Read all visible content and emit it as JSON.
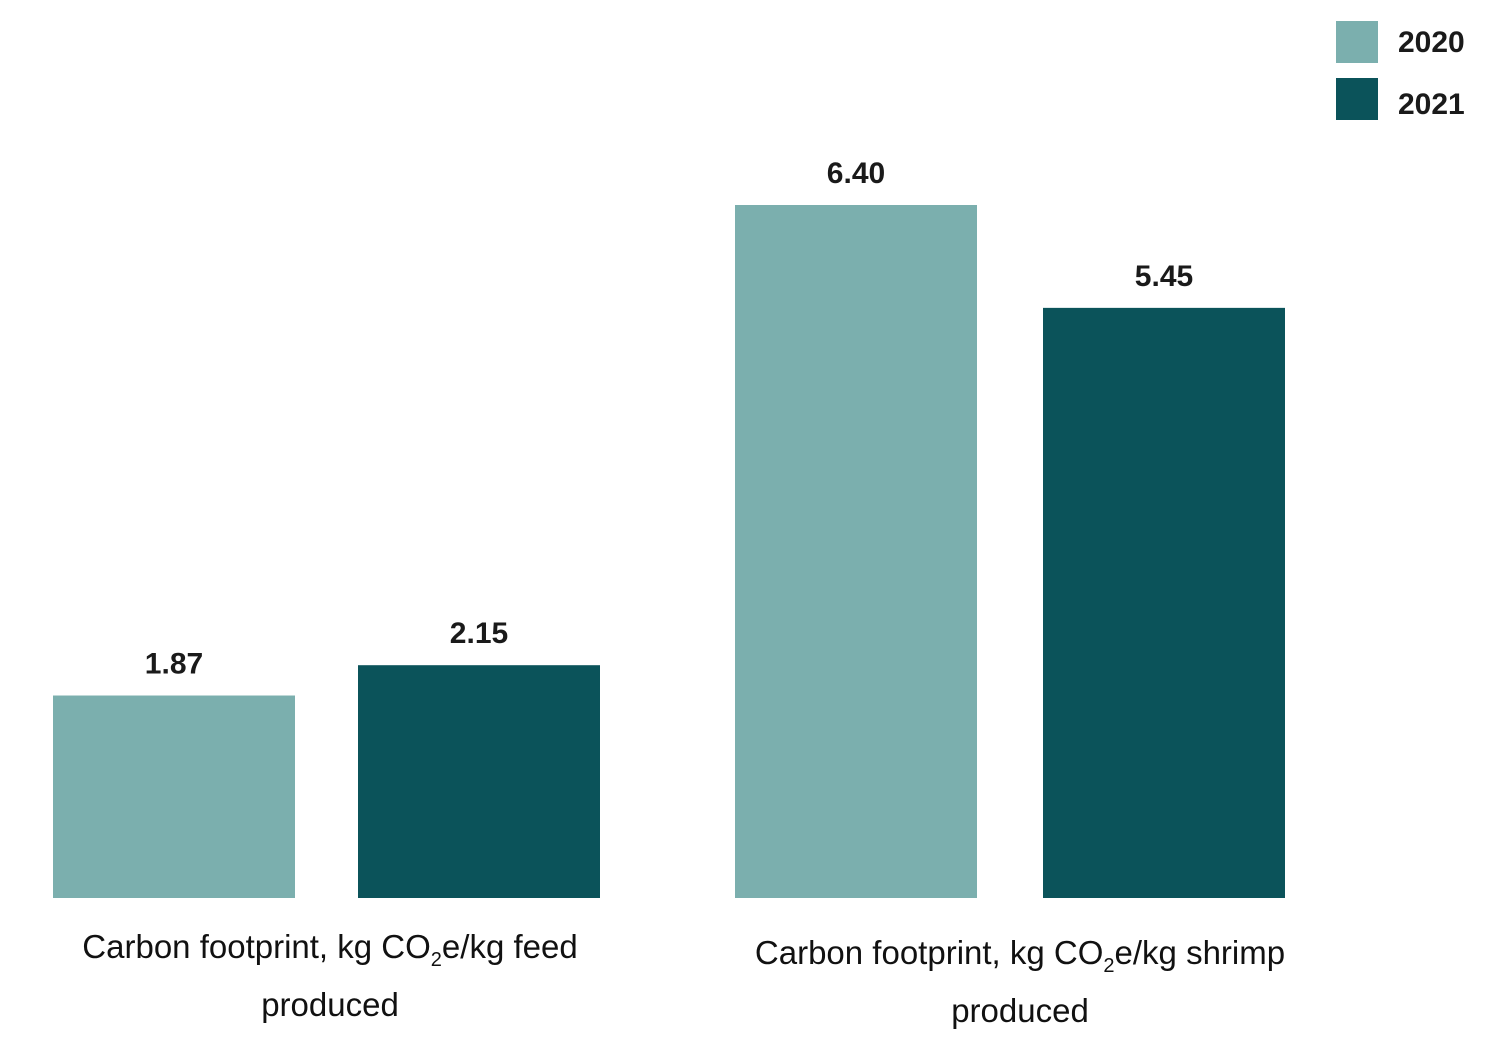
{
  "chart_data": {
    "type": "bar",
    "categories": [
      {
        "prefix": "Carbon footprint, kg CO",
        "sub": "2",
        "suffix": "e/kg feed produced"
      },
      {
        "prefix": "Carbon footprint, kg CO",
        "sub": "2",
        "suffix": "e/kg shrimp produced"
      }
    ],
    "series": [
      {
        "name": "2020",
        "color": "#7bafae",
        "values": [
          1.87,
          6.4
        ],
        "labels": [
          "1.87",
          "6.40"
        ]
      },
      {
        "name": "2021",
        "color": "#0b535a",
        "values": [
          2.15,
          5.45
        ],
        "labels": [
          "2.15",
          "5.45"
        ]
      }
    ],
    "title": "",
    "xlabel": "",
    "ylabel": "",
    "ylim": [
      0,
      6.4
    ],
    "grid": false,
    "legend_position": "top-right"
  }
}
